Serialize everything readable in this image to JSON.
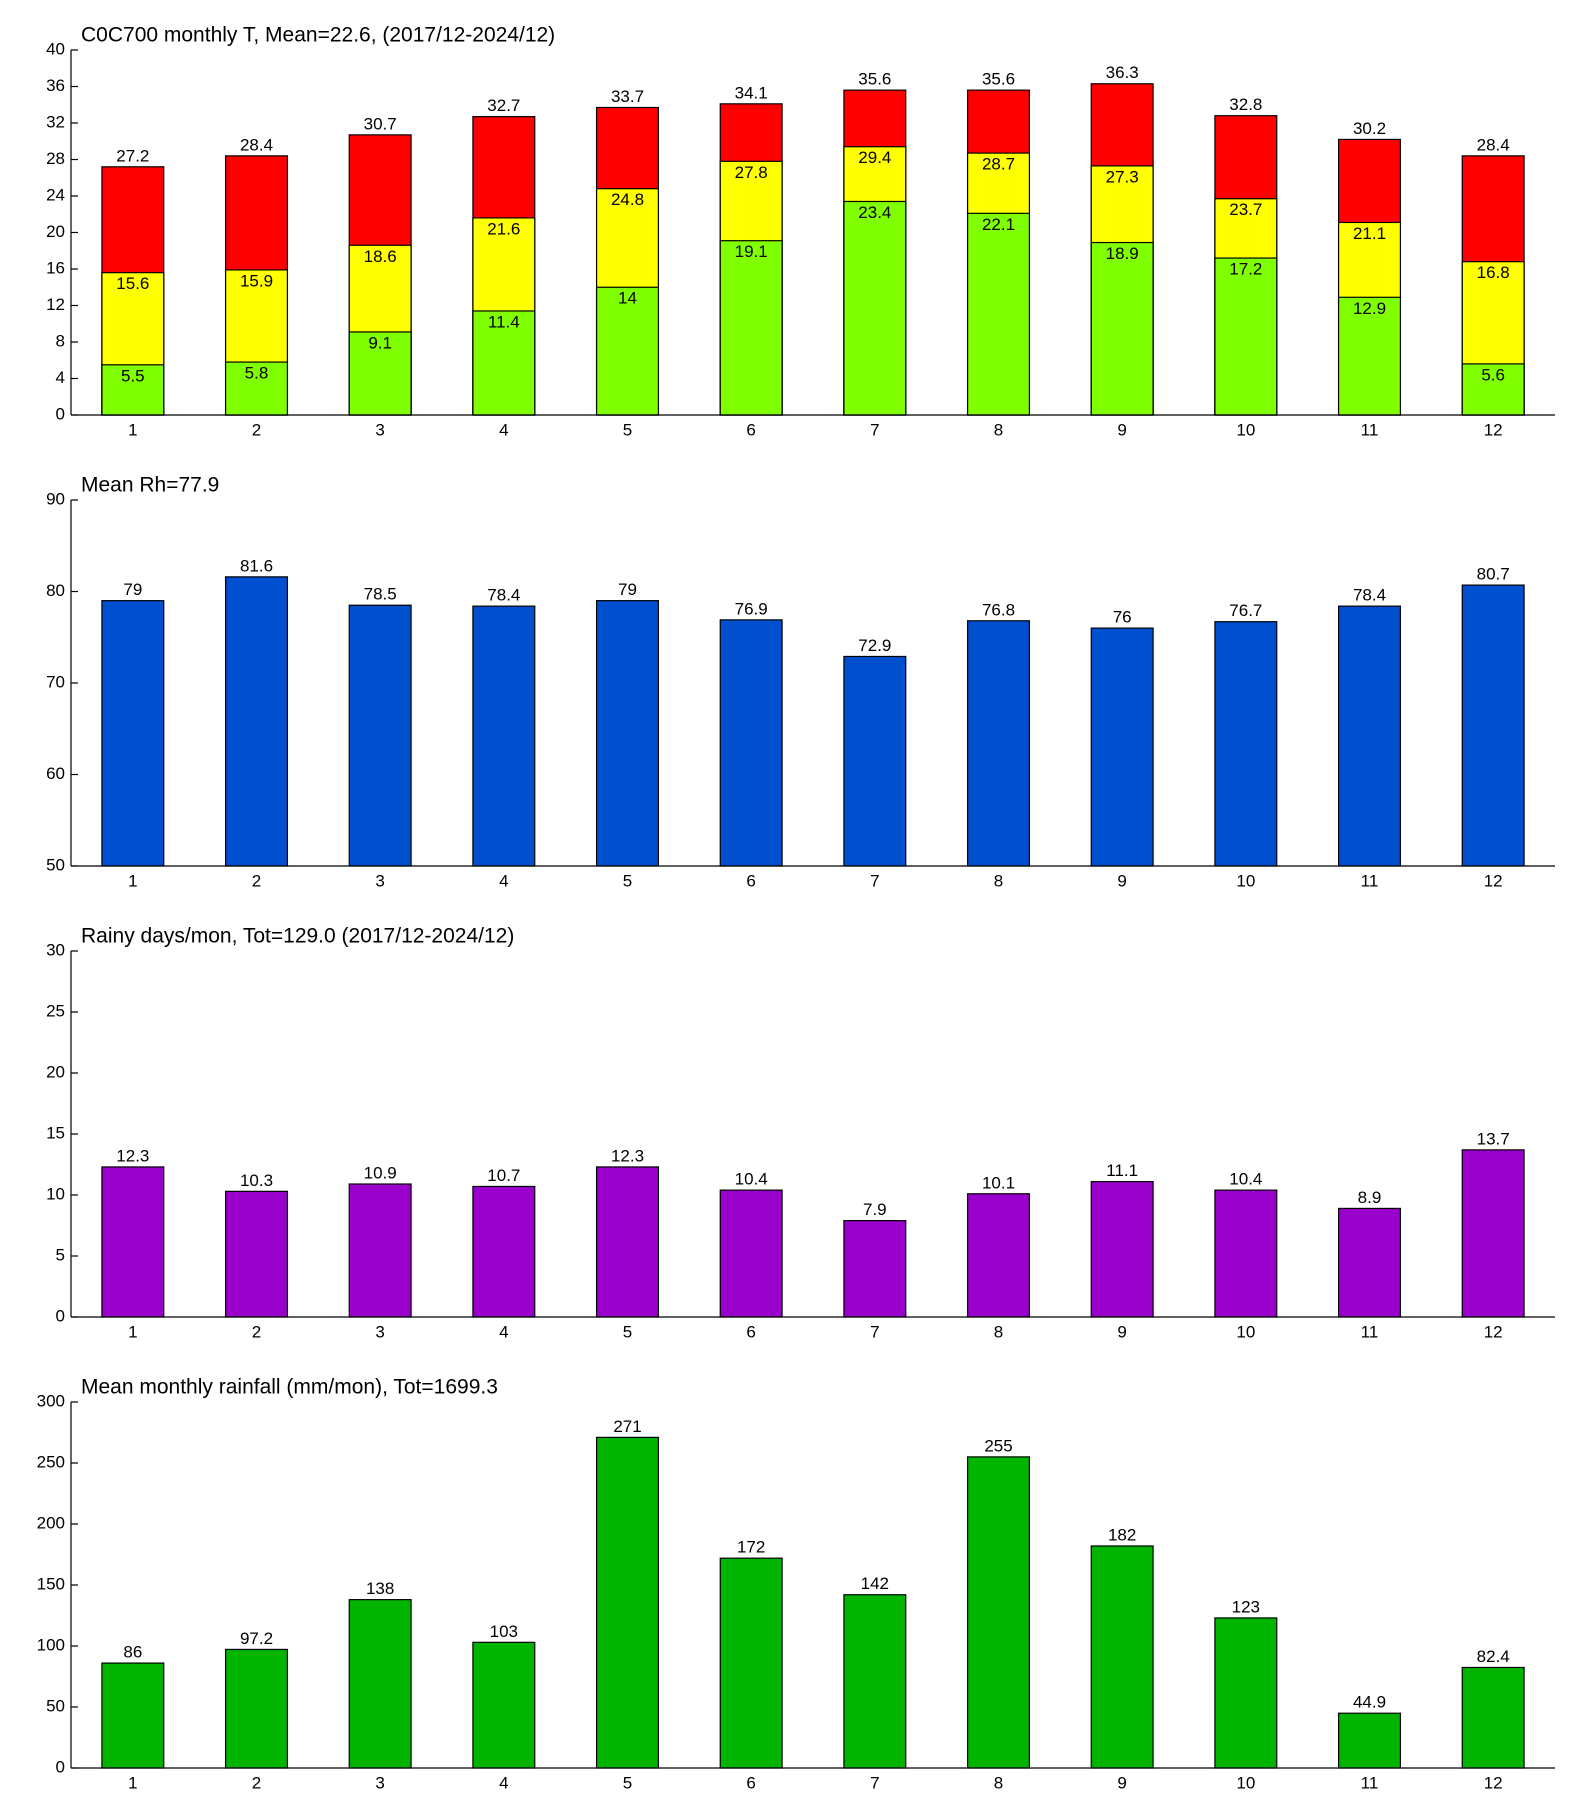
{
  "chart_data": [
    {
      "type": "bar",
      "barmode": "overlay",
      "title": "C0C700 monthly T, Mean=22.6, (2017/12-2024/12)",
      "categories": [
        "1",
        "2",
        "3",
        "4",
        "5",
        "6",
        "7",
        "8",
        "9",
        "10",
        "11",
        "12"
      ],
      "series": [
        {
          "color": "#ff0000",
          "values": [
            27.2,
            28.4,
            30.7,
            32.7,
            33.7,
            34.1,
            35.6,
            35.6,
            36.3,
            32.8,
            30.2,
            28.4
          ]
        },
        {
          "color": "#ffff00",
          "values": [
            15.6,
            15.9,
            18.6,
            21.6,
            24.8,
            27.8,
            29.4,
            28.7,
            27.3,
            23.7,
            21.1,
            16.8
          ]
        },
        {
          "color": "#80ff00",
          "values": [
            5.5,
            5.8,
            9.1,
            11.4,
            14,
            19.1,
            23.4,
            22.1,
            18.9,
            17.2,
            12.9,
            5.6
          ]
        }
      ],
      "ylim": [
        0,
        40
      ],
      "yticks": [
        0,
        4,
        8,
        12,
        16,
        20,
        24,
        28,
        32,
        36,
        40
      ]
    },
    {
      "type": "bar",
      "title": "Mean Rh=77.9",
      "categories": [
        "1",
        "2",
        "3",
        "4",
        "5",
        "6",
        "7",
        "8",
        "9",
        "10",
        "11",
        "12"
      ],
      "values": [
        79,
        81.6,
        78.5,
        78.4,
        79,
        76.9,
        72.9,
        76.8,
        76,
        76.7,
        78.4,
        80.7
      ],
      "color": "#004fcf",
      "ylim": [
        50,
        90
      ],
      "yticks": [
        50,
        60,
        70,
        80,
        90
      ]
    },
    {
      "type": "bar",
      "title": "Rainy days/mon, Tot=129.0 (2017/12-2024/12)",
      "categories": [
        "1",
        "2",
        "3",
        "4",
        "5",
        "6",
        "7",
        "8",
        "9",
        "10",
        "11",
        "12"
      ],
      "values": [
        12.3,
        10.3,
        10.9,
        10.7,
        12.3,
        10.4,
        7.9,
        10.1,
        11.1,
        10.4,
        8.9,
        13.7
      ],
      "color": "#9900cc",
      "ylim": [
        0,
        30
      ],
      "yticks": [
        0,
        5,
        10,
        15,
        20,
        25,
        30
      ]
    },
    {
      "type": "bar",
      "title": "Mean monthly rainfall (mm/mon), Tot=1699.3",
      "categories": [
        "1",
        "2",
        "3",
        "4",
        "5",
        "6",
        "7",
        "8",
        "9",
        "10",
        "11",
        "12"
      ],
      "values": [
        86,
        97.2,
        138,
        103,
        271,
        172,
        142,
        255,
        182,
        123,
        44.9,
        82.4
      ],
      "color": "#00b400",
      "ylim": [
        0,
        300
      ],
      "yticks": [
        0,
        50,
        100,
        150,
        200,
        250,
        300
      ]
    }
  ]
}
